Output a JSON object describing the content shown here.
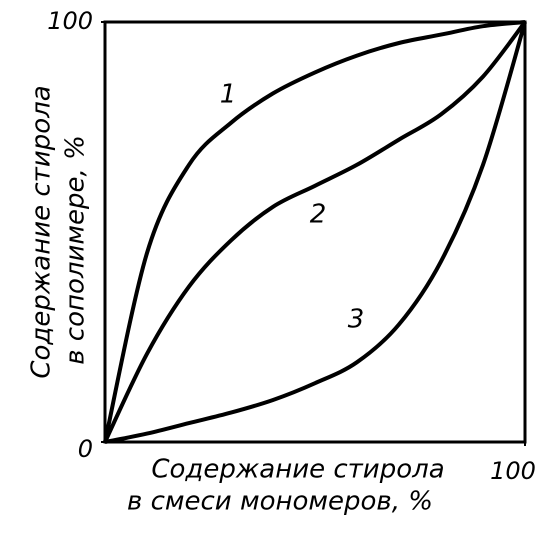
{
  "chart_data": {
    "type": "line",
    "xlabel": [
      "Содержание стирола",
      "в смеси мономеров, %"
    ],
    "ylabel": [
      "Содержание стирола",
      "в сополимере, %"
    ],
    "x": [
      0,
      10,
      20,
      30,
      40,
      50,
      60,
      70,
      80,
      90,
      100
    ],
    "series": [
      {
        "name": "1",
        "color": "#000000",
        "values": [
          0,
          45,
          66,
          76,
          83,
          88,
          92,
          95,
          97,
          99,
          100
        ]
      },
      {
        "name": "2",
        "color": "#000000",
        "values": [
          0,
          21,
          37,
          48,
          56,
          61,
          66,
          72,
          78,
          87,
          100
        ]
      },
      {
        "name": "3",
        "color": "#000000",
        "values": [
          0,
          2,
          4.5,
          7,
          10,
          14,
          19,
          28,
          43,
          66,
          100
        ]
      }
    ],
    "xlim": [
      0,
      100
    ],
    "ylim": [
      0,
      100
    ],
    "xticks": [
      100
    ],
    "yticks": [
      0,
      100
    ],
    "grid": false
  }
}
